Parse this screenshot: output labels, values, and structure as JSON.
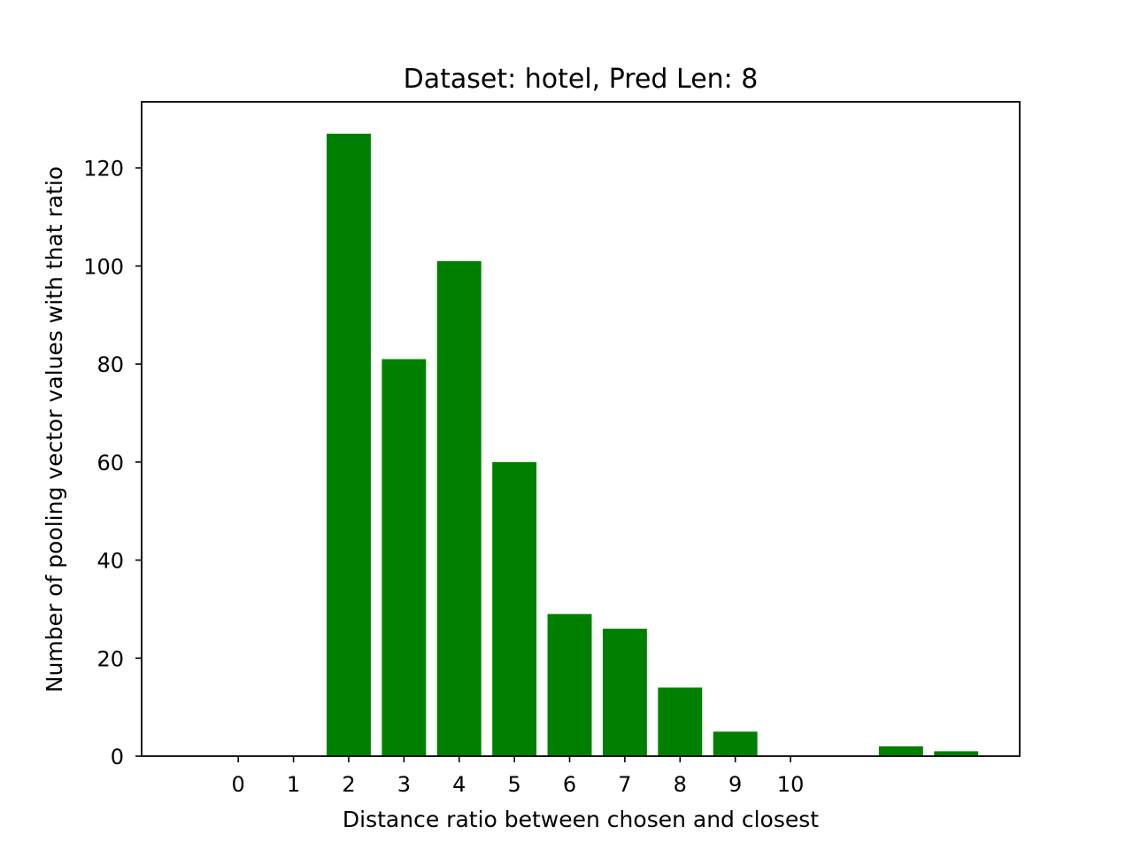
{
  "chart_data": {
    "type": "bar",
    "title": "Dataset: hotel, Pred Len: 8",
    "xlabel": "Distance ratio between chosen and closest",
    "ylabel": "Number of pooling vector values with that ratio",
    "x": [
      2,
      3,
      4,
      5,
      6,
      7,
      8,
      9,
      12,
      13
    ],
    "values": [
      127,
      81,
      101,
      60,
      29,
      26,
      14,
      5,
      2,
      1
    ],
    "xticks": [
      0,
      1,
      2,
      3,
      4,
      5,
      6,
      7,
      8,
      9,
      10
    ],
    "xlim": [
      -1.75,
      14.15
    ],
    "ylim": [
      0,
      133.5
    ],
    "yticks": [
      0,
      20,
      40,
      60,
      80,
      100,
      120
    ],
    "bar_color": "#008000",
    "grid": false,
    "legend": false
  }
}
